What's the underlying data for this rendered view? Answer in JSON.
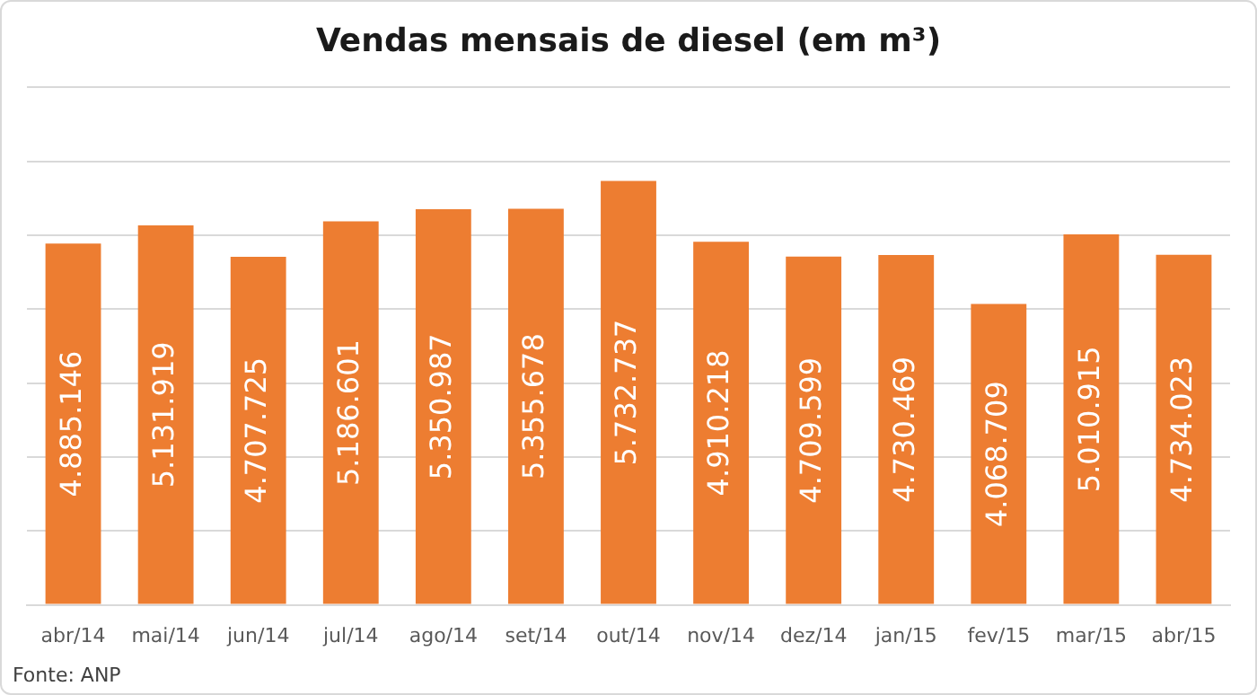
{
  "chart_data": {
    "type": "bar",
    "title": "Vendas mensais de diesel (em m³)",
    "categories": [
      "abr/14",
      "mai/14",
      "jun/14",
      "jul/14",
      "ago/14",
      "set/14",
      "out/14",
      "nov/14",
      "dez/14",
      "jan/15",
      "fev/15",
      "mar/15",
      "abr/15"
    ],
    "values": [
      4885146,
      5131919,
      4707725,
      5186601,
      5350987,
      5355678,
      5732737,
      4910218,
      4709599,
      4730469,
      4068709,
      5010915,
      4734023
    ],
    "value_labels": [
      "4.885.146",
      "5.131.919",
      "4.707.725",
      "5.186.601",
      "5.350.987",
      "5.355.678",
      "5.732.737",
      "4.910.218",
      "4.709.599",
      "4.730.469",
      "4.068.709",
      "5.010.915",
      "4.734.023"
    ],
    "color": "#ed7d31",
    "ylim": [
      0,
      7000000
    ],
    "yticks": [
      {
        "value": 0,
        "label": null
      },
      {
        "value": 1000000,
        "label": null
      },
      {
        "value": 2000000,
        "label": null
      },
      {
        "value": 3000000,
        "label": null
      },
      {
        "value": 4000000,
        "label": null
      },
      {
        "value": 5000000,
        "label": null
      },
      {
        "value": 6000000,
        "label": null
      },
      {
        "value": 7000000,
        "label": null
      }
    ],
    "tick_labels": "x",
    "grid": "y",
    "legend": false,
    "annotations": [
      "Fonte: ANP"
    ]
  }
}
